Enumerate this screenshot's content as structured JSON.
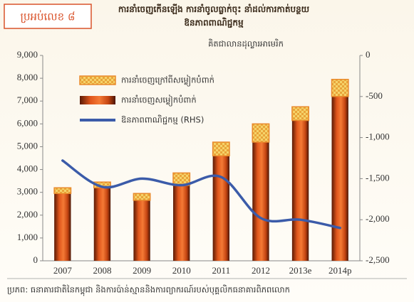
{
  "box_label": "ប្រអប់លេខ ៨",
  "chart_data": {
    "type": "bar",
    "title": "ការនាំចេញកើនឡើង ការនាំចូលធ្លាក់ចុះ នាំដល់ការកាត់បន្ថយ ឱនភាពពាណិជ្ជកម្ម",
    "subtitle": "គិតជាលានដុល្លារអាមេរិក",
    "categories": [
      "2007",
      "2008",
      "2009",
      "2010",
      "2011",
      "2012",
      "2013e",
      "2014p"
    ],
    "stacked": true,
    "series": [
      {
        "name": "ការនាំចេញសម្លៀកបំពាក់",
        "color": "#e0561c",
        "values": [
          2950,
          3200,
          2650,
          3300,
          4600,
          5200,
          6150,
          7200
        ]
      },
      {
        "name": "ការនាំចេញក្រៅពីសម្លៀកបំពាក់",
        "color": "#f2c24a",
        "values": [
          250,
          250,
          300,
          550,
          600,
          800,
          600,
          750
        ]
      },
      {
        "name": "ឱនភាពពាណិជ្ជកម្ម (RHS)",
        "color": "#3b5ba9",
        "type": "line",
        "axis": "y2",
        "values": [
          -1280,
          -1600,
          -1500,
          -1580,
          -1480,
          -1980,
          -2000,
          -2100
        ]
      }
    ],
    "ylim": [
      0,
      9000
    ],
    "yticks": [
      0,
      {
        "value": 1000,
        "label": "1,000"
      },
      {
        "value": 2000,
        "label": "2,000"
      },
      {
        "value": 3000,
        "label": "3,000"
      },
      {
        "value": 4000,
        "label": "4,000"
      },
      {
        "value": 5000,
        "label": "5,000"
      },
      {
        "value": 6000,
        "label": "6,000"
      },
      {
        "value": 7000,
        "label": "7,000"
      },
      {
        "value": 8000,
        "label": "8,000"
      },
      {
        "value": 9000,
        "label": "9,000"
      }
    ],
    "y2lim": [
      -2500,
      0
    ],
    "y2ticks": [
      0,
      {
        "value": -500,
        "label": "-500"
      },
      {
        "value": -1000,
        "label": "-1,000"
      },
      {
        "value": -1500,
        "label": "-1,500"
      },
      {
        "value": -2000,
        "label": "-2,000"
      },
      {
        "value": -2500,
        "label": "-2,500"
      }
    ],
    "source": "ប្រភព: ធនាគារជាតិនៃកម្ពុជា និងការប៉ាន់ស្មាននិងការព្យាករណ៍របស់បុគ្គលិកធនាគារពិភពលោក"
  }
}
